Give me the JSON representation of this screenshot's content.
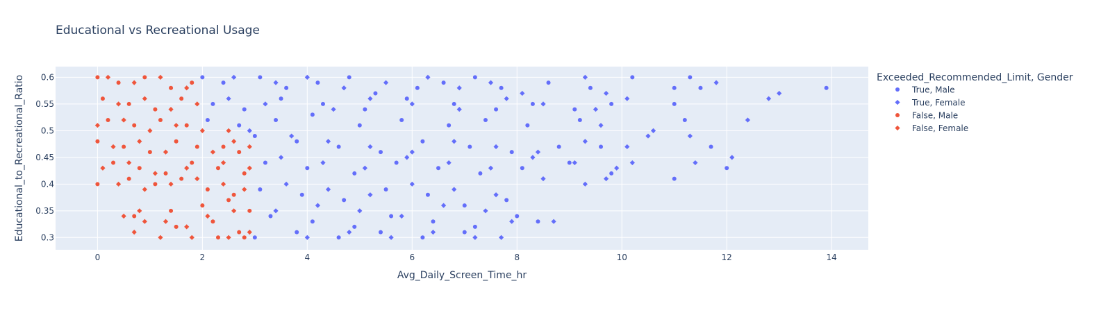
{
  "chart_data": {
    "type": "scatter",
    "title": "Educational vs Recreational Usage",
    "xlabel": "Avg_Daily_Screen_Time_hr",
    "ylabel": "Educational_to_Recreational_Ratio",
    "xlim": [
      -0.8,
      14.7
    ],
    "ylim": [
      0.277,
      0.62
    ],
    "x_ticks": [
      0,
      2,
      4,
      6,
      8,
      10,
      12,
      14
    ],
    "y_ticks": [
      0.3,
      0.35,
      0.4,
      0.45,
      0.5,
      0.55,
      0.6
    ],
    "grid": true,
    "legend_title": "Exceeded_Recommended_Limit, Gender",
    "legend_position": "right",
    "series": [
      {
        "name": "True, Male",
        "color": "#636efa",
        "marker": "circle",
        "points": [
          [
            2.0,
            0.6
          ],
          [
            2.4,
            0.59
          ],
          [
            3.1,
            0.6
          ],
          [
            3.6,
            0.58
          ],
          [
            4.2,
            0.59
          ],
          [
            4.8,
            0.6
          ],
          [
            5.3,
            0.57
          ],
          [
            6.1,
            0.58
          ],
          [
            6.6,
            0.59
          ],
          [
            7.2,
            0.6
          ],
          [
            7.7,
            0.58
          ],
          [
            8.6,
            0.59
          ],
          [
            9.4,
            0.58
          ],
          [
            10.2,
            0.6
          ],
          [
            11.0,
            0.58
          ],
          [
            11.3,
            0.6
          ],
          [
            11.5,
            0.58
          ],
          [
            2.2,
            0.55
          ],
          [
            2.8,
            0.54
          ],
          [
            3.5,
            0.56
          ],
          [
            4.3,
            0.55
          ],
          [
            5.1,
            0.54
          ],
          [
            5.9,
            0.56
          ],
          [
            6.8,
            0.55
          ],
          [
            7.6,
            0.54
          ],
          [
            8.3,
            0.55
          ],
          [
            9.1,
            0.54
          ],
          [
            9.8,
            0.55
          ],
          [
            11.0,
            0.55
          ],
          [
            2.1,
            0.52
          ],
          [
            2.7,
            0.51
          ],
          [
            3.4,
            0.52
          ],
          [
            4.1,
            0.53
          ],
          [
            5.0,
            0.51
          ],
          [
            5.8,
            0.52
          ],
          [
            6.7,
            0.51
          ],
          [
            7.4,
            0.52
          ],
          [
            8.2,
            0.51
          ],
          [
            9.2,
            0.52
          ],
          [
            11.2,
            0.52
          ],
          [
            3.0,
            0.49
          ],
          [
            3.8,
            0.48
          ],
          [
            4.6,
            0.47
          ],
          [
            5.4,
            0.46
          ],
          [
            6.2,
            0.48
          ],
          [
            7.1,
            0.47
          ],
          [
            7.9,
            0.46
          ],
          [
            8.8,
            0.47
          ],
          [
            9.6,
            0.47
          ],
          [
            3.2,
            0.44
          ],
          [
            4.0,
            0.43
          ],
          [
            4.9,
            0.42
          ],
          [
            5.7,
            0.44
          ],
          [
            6.5,
            0.43
          ],
          [
            7.3,
            0.42
          ],
          [
            8.1,
            0.43
          ],
          [
            9.0,
            0.44
          ],
          [
            9.8,
            0.42
          ],
          [
            11.0,
            0.41
          ],
          [
            3.1,
            0.39
          ],
          [
            3.9,
            0.38
          ],
          [
            4.7,
            0.37
          ],
          [
            5.5,
            0.39
          ],
          [
            6.3,
            0.38
          ],
          [
            7.0,
            0.36
          ],
          [
            7.8,
            0.37
          ],
          [
            3.3,
            0.34
          ],
          [
            4.1,
            0.33
          ],
          [
            4.9,
            0.32
          ],
          [
            5.6,
            0.34
          ],
          [
            6.4,
            0.33
          ],
          [
            7.2,
            0.32
          ],
          [
            8.0,
            0.34
          ],
          [
            3.0,
            0.3
          ],
          [
            3.8,
            0.31
          ],
          [
            4.6,
            0.3
          ],
          [
            5.4,
            0.31
          ],
          [
            6.2,
            0.3
          ],
          [
            7.0,
            0.31
          ],
          [
            8.4,
            0.33
          ],
          [
            12.0,
            0.43
          ],
          [
            11.7,
            0.47
          ],
          [
            13.9,
            0.58
          ]
        ]
      },
      {
        "name": "True, Female",
        "color": "#636efa",
        "marker": "diamond",
        "points": [
          [
            2.6,
            0.6
          ],
          [
            3.4,
            0.59
          ],
          [
            4.0,
            0.6
          ],
          [
            4.7,
            0.58
          ],
          [
            5.5,
            0.59
          ],
          [
            6.3,
            0.6
          ],
          [
            6.9,
            0.58
          ],
          [
            7.5,
            0.59
          ],
          [
            8.1,
            0.57
          ],
          [
            9.3,
            0.6
          ],
          [
            9.7,
            0.57
          ],
          [
            11.8,
            0.59
          ],
          [
            2.5,
            0.56
          ],
          [
            3.2,
            0.55
          ],
          [
            4.5,
            0.54
          ],
          [
            5.2,
            0.56
          ],
          [
            6.0,
            0.55
          ],
          [
            6.9,
            0.54
          ],
          [
            7.8,
            0.56
          ],
          [
            8.5,
            0.55
          ],
          [
            9.5,
            0.54
          ],
          [
            10.1,
            0.56
          ],
          [
            9.6,
            0.51
          ],
          [
            2.9,
            0.5
          ],
          [
            3.7,
            0.49
          ],
          [
            4.4,
            0.48
          ],
          [
            5.2,
            0.47
          ],
          [
            6.0,
            0.46
          ],
          [
            6.8,
            0.48
          ],
          [
            7.6,
            0.47
          ],
          [
            8.4,
            0.46
          ],
          [
            9.3,
            0.48
          ],
          [
            10.1,
            0.47
          ],
          [
            10.6,
            0.5
          ],
          [
            11.3,
            0.49
          ],
          [
            3.5,
            0.45
          ],
          [
            4.3,
            0.44
          ],
          [
            5.1,
            0.43
          ],
          [
            5.9,
            0.45
          ],
          [
            6.7,
            0.44
          ],
          [
            7.5,
            0.43
          ],
          [
            8.3,
            0.45
          ],
          [
            9.1,
            0.44
          ],
          [
            9.9,
            0.43
          ],
          [
            10.2,
            0.44
          ],
          [
            10.5,
            0.49
          ],
          [
            11.4,
            0.44
          ],
          [
            12.1,
            0.45
          ],
          [
            3.6,
            0.4
          ],
          [
            4.4,
            0.39
          ],
          [
            5.2,
            0.38
          ],
          [
            6.0,
            0.4
          ],
          [
            6.8,
            0.39
          ],
          [
            7.6,
            0.38
          ],
          [
            8.5,
            0.41
          ],
          [
            9.3,
            0.4
          ],
          [
            9.7,
            0.41
          ],
          [
            3.4,
            0.35
          ],
          [
            4.2,
            0.36
          ],
          [
            5.0,
            0.35
          ],
          [
            5.8,
            0.34
          ],
          [
            6.6,
            0.36
          ],
          [
            7.4,
            0.35
          ],
          [
            7.9,
            0.33
          ],
          [
            4.0,
            0.3
          ],
          [
            4.8,
            0.31
          ],
          [
            5.6,
            0.3
          ],
          [
            6.4,
            0.31
          ],
          [
            7.2,
            0.3
          ],
          [
            7.7,
            0.3
          ],
          [
            8.7,
            0.33
          ],
          [
            12.4,
            0.52
          ],
          [
            12.8,
            0.56
          ],
          [
            13.0,
            0.57
          ]
        ]
      },
      {
        "name": "False, Male",
        "color": "#ef553b",
        "marker": "circle",
        "points": [
          [
            0.0,
            0.6
          ],
          [
            0.4,
            0.59
          ],
          [
            0.9,
            0.6
          ],
          [
            1.4,
            0.58
          ],
          [
            1.8,
            0.59
          ],
          [
            0.1,
            0.56
          ],
          [
            0.6,
            0.55
          ],
          [
            1.1,
            0.54
          ],
          [
            1.6,
            0.56
          ],
          [
            0.2,
            0.52
          ],
          [
            0.7,
            0.51
          ],
          [
            1.2,
            0.52
          ],
          [
            1.7,
            0.51
          ],
          [
            0.0,
            0.48
          ],
          [
            0.5,
            0.47
          ],
          [
            1.0,
            0.46
          ],
          [
            1.5,
            0.48
          ],
          [
            1.9,
            0.47
          ],
          [
            2.4,
            0.47
          ],
          [
            2.7,
            0.46
          ],
          [
            0.3,
            0.44
          ],
          [
            0.8,
            0.43
          ],
          [
            1.3,
            0.42
          ],
          [
            1.8,
            0.44
          ],
          [
            2.3,
            0.43
          ],
          [
            2.8,
            0.42
          ],
          [
            0.0,
            0.4
          ],
          [
            0.6,
            0.41
          ],
          [
            1.1,
            0.4
          ],
          [
            1.6,
            0.41
          ],
          [
            2.1,
            0.39
          ],
          [
            2.6,
            0.38
          ],
          [
            0.7,
            0.34
          ],
          [
            1.4,
            0.35
          ],
          [
            2.0,
            0.36
          ],
          [
            2.5,
            0.37
          ],
          [
            2.9,
            0.35
          ],
          [
            1.5,
            0.32
          ],
          [
            2.2,
            0.33
          ],
          [
            2.7,
            0.31
          ],
          [
            2.3,
            0.3
          ],
          [
            2.8,
            0.3
          ]
        ]
      },
      {
        "name": "False, Female",
        "color": "#ef553b",
        "marker": "diamond",
        "points": [
          [
            0.2,
            0.6
          ],
          [
            0.7,
            0.59
          ],
          [
            1.2,
            0.6
          ],
          [
            1.7,
            0.58
          ],
          [
            0.4,
            0.55
          ],
          [
            0.9,
            0.56
          ],
          [
            1.4,
            0.54
          ],
          [
            1.9,
            0.55
          ],
          [
            0.0,
            0.51
          ],
          [
            0.5,
            0.52
          ],
          [
            1.0,
            0.5
          ],
          [
            1.5,
            0.51
          ],
          [
            2.0,
            0.5
          ],
          [
            2.5,
            0.5
          ],
          [
            0.3,
            0.47
          ],
          [
            0.8,
            0.48
          ],
          [
            1.3,
            0.46
          ],
          [
            2.2,
            0.46
          ],
          [
            2.6,
            0.48
          ],
          [
            2.9,
            0.47
          ],
          [
            0.1,
            0.43
          ],
          [
            0.6,
            0.44
          ],
          [
            1.1,
            0.42
          ],
          [
            1.7,
            0.43
          ],
          [
            2.4,
            0.44
          ],
          [
            2.9,
            0.43
          ],
          [
            0.4,
            0.4
          ],
          [
            0.9,
            0.39
          ],
          [
            1.4,
            0.4
          ],
          [
            1.9,
            0.41
          ],
          [
            2.4,
            0.4
          ],
          [
            2.8,
            0.39
          ],
          [
            0.5,
            0.34
          ],
          [
            0.9,
            0.33
          ],
          [
            1.3,
            0.33
          ],
          [
            2.1,
            0.34
          ],
          [
            2.6,
            0.35
          ],
          [
            0.8,
            0.35
          ],
          [
            0.7,
            0.31
          ],
          [
            1.2,
            0.3
          ],
          [
            1.8,
            0.3
          ],
          [
            2.5,
            0.3
          ],
          [
            2.9,
            0.31
          ],
          [
            1.7,
            0.32
          ]
        ]
      }
    ]
  }
}
